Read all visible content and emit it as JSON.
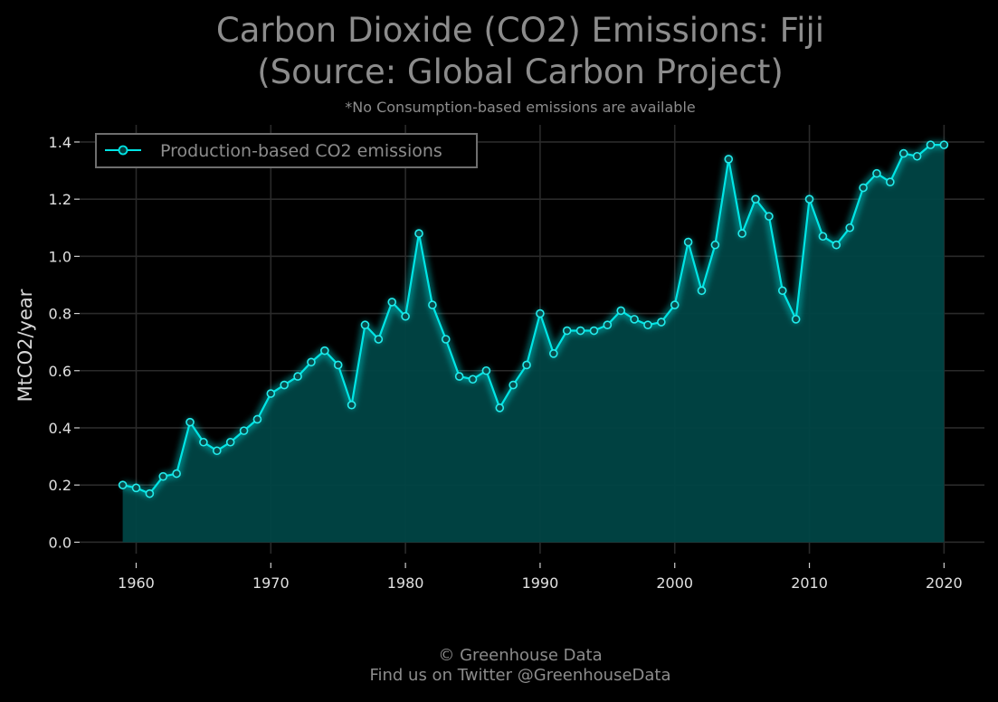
{
  "chart_data": {
    "type": "line",
    "title_line1": "Carbon Dioxide (CO2) Emissions: Fiji",
    "title_line2": "(Source: Global Carbon Project)",
    "subtitle": "*No Consumption-based emissions are available",
    "xlabel": "",
    "ylabel": "MtCO2/year",
    "xlim": [
      1955.8,
      2023
    ],
    "ylim": [
      -0.04,
      1.46
    ],
    "x_ticks": [
      1960,
      1970,
      1980,
      1990,
      2000,
      2010,
      2020
    ],
    "y_ticks": [
      0.0,
      0.2,
      0.4,
      0.6,
      0.8,
      1.0,
      1.2,
      1.4
    ],
    "y_tick_labels": [
      "0.0",
      "0.2",
      "0.4",
      "0.6",
      "0.8",
      "1.0",
      "1.2",
      "1.4"
    ],
    "grid": true,
    "legend_position": "top-left",
    "series": [
      {
        "name": "Production-based CO2 emissions",
        "color": "#00e5e5",
        "fill_color": "#004444",
        "x": [
          1959,
          1960,
          1961,
          1962,
          1963,
          1964,
          1965,
          1966,
          1967,
          1968,
          1969,
          1970,
          1971,
          1972,
          1973,
          1974,
          1975,
          1976,
          1977,
          1978,
          1979,
          1980,
          1981,
          1982,
          1983,
          1984,
          1985,
          1986,
          1987,
          1988,
          1989,
          1990,
          1991,
          1992,
          1993,
          1994,
          1995,
          1996,
          1997,
          1998,
          1999,
          2000,
          2001,
          2002,
          2003,
          2004,
          2005,
          2006,
          2007,
          2008,
          2009,
          2010,
          2011,
          2012,
          2013,
          2014,
          2015,
          2016,
          2017,
          2018,
          2019,
          2020
        ],
        "values": [
          0.2,
          0.19,
          0.17,
          0.23,
          0.24,
          0.42,
          0.35,
          0.32,
          0.35,
          0.39,
          0.43,
          0.52,
          0.55,
          0.58,
          0.63,
          0.67,
          0.62,
          0.48,
          0.76,
          0.71,
          0.84,
          0.79,
          1.08,
          0.83,
          0.71,
          0.58,
          0.57,
          0.6,
          0.47,
          0.55,
          0.62,
          0.8,
          0.66,
          0.74,
          0.74,
          0.74,
          0.76,
          0.81,
          0.78,
          0.76,
          0.77,
          0.83,
          1.05,
          0.88,
          1.04,
          1.34,
          1.08,
          1.2,
          1.14,
          0.88,
          0.78,
          1.2,
          1.07,
          1.04,
          1.1,
          1.24,
          1.29,
          1.26,
          1.36,
          1.35,
          1.39,
          1.39
        ]
      }
    ]
  },
  "footer": {
    "copyright": "© Greenhouse Data",
    "twitter": "Find us on Twitter @GreenhouseData"
  }
}
